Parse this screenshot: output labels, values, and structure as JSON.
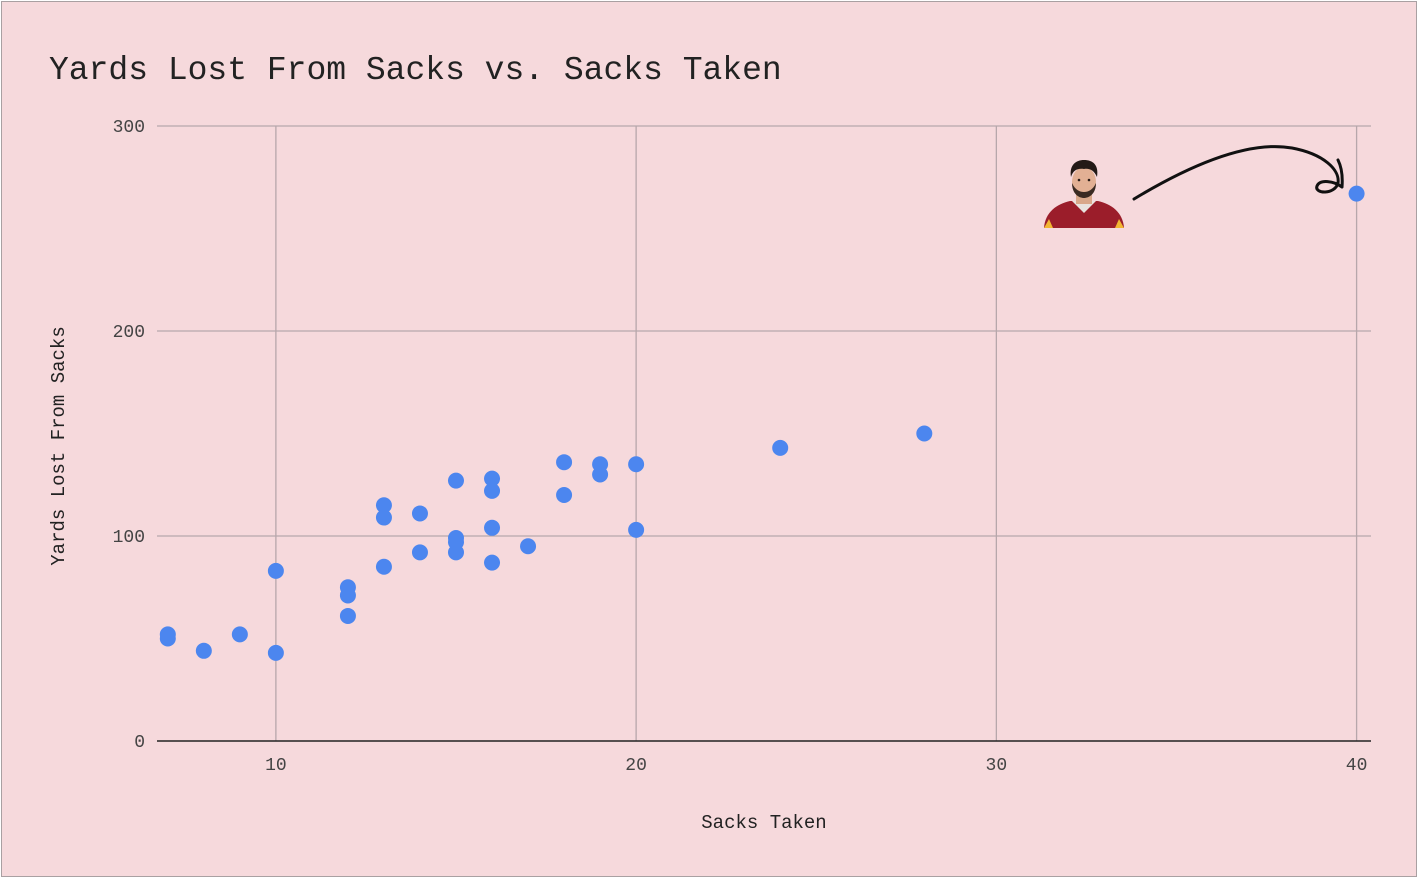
{
  "chart_data": {
    "type": "scatter",
    "title": "Yards Lost From Sacks vs. Sacks Taken",
    "xlabel": "Sacks Taken",
    "ylabel": "Yards Lost From Sacks",
    "xlim": [
      6.7,
      40.4
    ],
    "ylim": [
      0,
      300
    ],
    "x_ticks": [
      10,
      20,
      30,
      40
    ],
    "y_ticks": [
      0,
      100,
      200,
      300
    ],
    "x_tick_labels": [
      "10",
      "20",
      "30",
      "40"
    ],
    "y_tick_labels": [
      "0",
      "100",
      "200",
      "300"
    ],
    "grid": true,
    "legend": "none",
    "point_color": "#4c86ef",
    "points": [
      {
        "x": 7,
        "y": 52
      },
      {
        "x": 7,
        "y": 50
      },
      {
        "x": 8,
        "y": 44
      },
      {
        "x": 9,
        "y": 52
      },
      {
        "x": 10,
        "y": 83
      },
      {
        "x": 10,
        "y": 43
      },
      {
        "x": 12,
        "y": 75
      },
      {
        "x": 12,
        "y": 71
      },
      {
        "x": 12,
        "y": 61
      },
      {
        "x": 13,
        "y": 115
      },
      {
        "x": 13,
        "y": 109
      },
      {
        "x": 13,
        "y": 85
      },
      {
        "x": 14,
        "y": 111
      },
      {
        "x": 14,
        "y": 92
      },
      {
        "x": 15,
        "y": 127
      },
      {
        "x": 15,
        "y": 99
      },
      {
        "x": 15,
        "y": 97
      },
      {
        "x": 15,
        "y": 92
      },
      {
        "x": 16,
        "y": 128
      },
      {
        "x": 16,
        "y": 122
      },
      {
        "x": 16,
        "y": 104
      },
      {
        "x": 16,
        "y": 87
      },
      {
        "x": 17,
        "y": 95
      },
      {
        "x": 18,
        "y": 136
      },
      {
        "x": 18,
        "y": 120
      },
      {
        "x": 19,
        "y": 135
      },
      {
        "x": 19,
        "y": 130
      },
      {
        "x": 20,
        "y": 135
      },
      {
        "x": 20,
        "y": 103
      },
      {
        "x": 24,
        "y": 143
      },
      {
        "x": 28,
        "y": 150
      },
      {
        "x": 40,
        "y": 267
      }
    ],
    "annotation": {
      "type": "player-photo-with-arrow",
      "target_index": 31
    }
  }
}
